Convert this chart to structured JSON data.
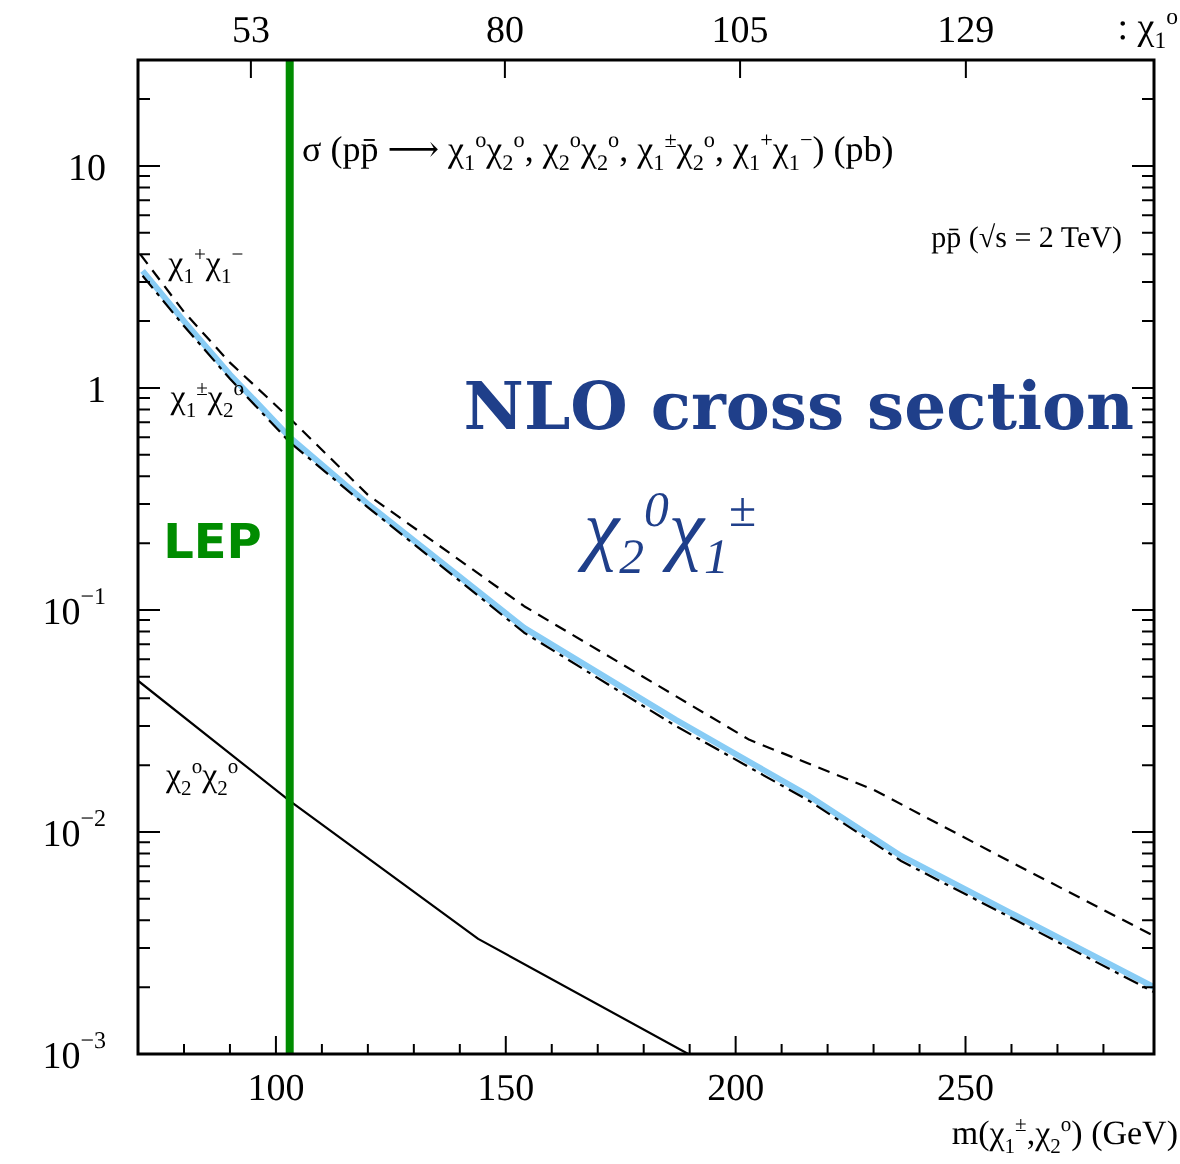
{
  "chart_data": {
    "type": "line",
    "title": "σ (pp̄ ⟶ χ$_{1}$$^{o}$χ$_{2}$$^{o}$, χ$_{2}$$^{o}$χ$_{2}$$^{o}$, χ$_{1}$$^{±}$χ$_{2}$$^{o}$, χ$_{1}$$^{+}$χ$_{1}$$^{−}$)  (pb)",
    "subtitle": "pp̄ (√s = 2 TeV)",
    "xlabel": "m(χ$_{1}$$^{±}$,χ$_{2}$$^{o}$)  (GeV)",
    "x2label": ": χ$_{1}$$^{o}$",
    "annotations": [
      "NLO cross section",
      "χ$_{2}$$^{0}$χ$_{1}$$^{±}$"
    ],
    "series": [
      {
        "name": "χ$_{1}$$^{+}$χ$_{1}$$^{−}$",
        "color": "#000000",
        "line_style": "dashed",
        "x": [
          70.5,
          80,
          90,
          103,
          120,
          154,
          203,
          230,
          260,
          291
        ],
        "values": [
          4.0,
          2.2,
          1.3,
          0.73,
          0.33,
          0.104,
          0.026,
          0.0155,
          0.0073,
          0.0034
        ]
      },
      {
        "color": "#88ccf5",
        "line_style": "solid",
        "x": [
          71,
          80,
          90,
          103,
          120,
          154,
          187,
          216,
          236,
          260,
          291
        ],
        "values": [
          3.37,
          2.0,
          1.15,
          0.6,
          0.3,
          0.083,
          0.032,
          0.0145,
          0.0078,
          0.0043,
          0.002
        ]
      },
      {
        "name": "χ$_{1}$$^{±}$χ$_{2}$$^{o}$",
        "color": "#000000",
        "line_style": "dashdot",
        "x": [
          71,
          80,
          90,
          103,
          120,
          154,
          187,
          216,
          236,
          260,
          291
        ],
        "values": [
          3.2,
          1.9,
          1.1,
          0.57,
          0.29,
          0.079,
          0.03,
          0.0138,
          0.0074,
          0.0041,
          0.0019
        ]
      },
      {
        "name": "χ$_{2}$$^{o}$χ$_{2}$$^{o}$",
        "color": "#000000",
        "line_style": "solid",
        "x": [
          70,
          103,
          144,
          189.7
        ],
        "values": [
          0.048,
          0.0138,
          0.0033,
          0.001
        ]
      }
    ],
    "ref_lines": [
      {
        "axis": "x",
        "value": 103,
        "label": "LEP",
        "color": "#008c00"
      }
    ],
    "log": "y",
    "grid": false,
    "legend": false,
    "xlim": [
      70,
      291
    ],
    "xticks": [
      {
        "value": 80,
        "label": null
      },
      {
        "value": 90,
        "label": null
      },
      100,
      {
        "value": 110,
        "label": null
      },
      {
        "value": 120,
        "label": null
      },
      {
        "value": 130,
        "label": null
      },
      {
        "value": 140,
        "label": null
      },
      150,
      {
        "value": 160,
        "label": null
      },
      {
        "value": 170,
        "label": null
      },
      {
        "value": 180,
        "label": null
      },
      {
        "value": 190,
        "label": null
      },
      200,
      {
        "value": 210,
        "label": null
      },
      {
        "value": 220,
        "label": null
      },
      {
        "value": 230,
        "label": null
      },
      {
        "value": 240,
        "label": null
      },
      250,
      {
        "value": 260,
        "label": null
      },
      {
        "value": 270,
        "label": null
      },
      {
        "value": 280,
        "label": null
      }
    ],
    "x2lim": [
      41,
      149
    ],
    "x2ticks": [
      53,
      80,
      105,
      129
    ],
    "ylim": [
      0.001,
      30
    ],
    "yticks": [
      {
        "value": 0.001,
        "label": "10$^{−3}$"
      },
      {
        "value": 0.002,
        "label": null
      },
      {
        "value": 0.003,
        "label": null
      },
      {
        "value": 0.004,
        "label": null
      },
      {
        "value": 0.005,
        "label": null
      },
      {
        "value": 0.006,
        "label": null
      },
      {
        "value": 0.007,
        "label": null
      },
      {
        "value": 0.008,
        "label": null
      },
      {
        "value": 0.009,
        "label": null
      },
      {
        "value": 0.01,
        "label": "10$^{−2}$"
      },
      {
        "value": 0.02,
        "label": null
      },
      {
        "value": 0.03,
        "label": null
      },
      {
        "value": 0.04,
        "label": null
      },
      {
        "value": 0.05,
        "label": null
      },
      {
        "value": 0.06,
        "label": null
      },
      {
        "value": 0.07,
        "label": null
      },
      {
        "value": 0.08,
        "label": null
      },
      {
        "value": 0.09,
        "label": null
      },
      {
        "value": 0.1,
        "label": "10$^{−1}$"
      },
      {
        "value": 0.2,
        "label": null
      },
      {
        "value": 0.3,
        "label": null
      },
      {
        "value": 0.4,
        "label": null
      },
      {
        "value": 0.5,
        "label": null
      },
      {
        "value": 0.6,
        "label": null
      },
      {
        "value": 0.7,
        "label": null
      },
      {
        "value": 0.8,
        "label": null
      },
      {
        "value": 0.9,
        "label": null
      },
      1,
      {
        "value": 2,
        "label": null
      },
      {
        "value": 3,
        "label": null
      },
      {
        "value": 4,
        "label": null
      },
      {
        "value": 5,
        "label": null
      },
      {
        "value": 6,
        "label": null
      },
      {
        "value": 7,
        "label": null
      },
      {
        "value": 8,
        "label": null
      },
      {
        "value": 9,
        "label": null
      },
      10,
      {
        "value": 20,
        "label": null
      },
      {
        "value": 30,
        "label": null
      }
    ]
  }
}
